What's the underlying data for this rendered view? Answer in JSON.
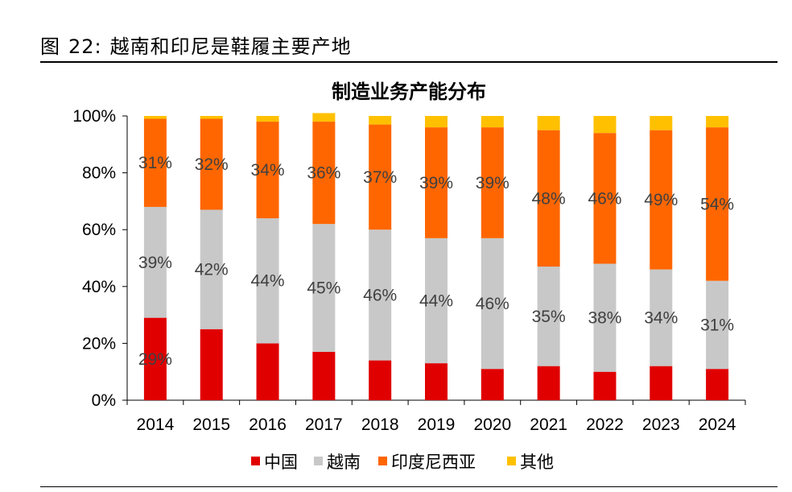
{
  "figure": {
    "label": "图",
    "number": "22:",
    "caption": "越南和印尼是鞋履主要产地"
  },
  "chart_data": {
    "type": "bar",
    "stacked": true,
    "title": "制造业务产能分布",
    "categories": [
      "2014",
      "2015",
      "2016",
      "2017",
      "2018",
      "2019",
      "2020",
      "2021",
      "2022",
      "2023",
      "2024"
    ],
    "y_tick_labels": [
      "0%",
      "20%",
      "40%",
      "60%",
      "80%",
      "100%"
    ],
    "ylim": [
      0,
      100
    ],
    "legend_position": "bottom",
    "grid": false,
    "series": [
      {
        "name": "中国",
        "color": "#e00000",
        "values": [
          29,
          25,
          20,
          17,
          14,
          13,
          11,
          12,
          10,
          12,
          11
        ],
        "labels": [
          "29%",
          "",
          "",
          "",
          "",
          "",
          "",
          "",
          "",
          "",
          ""
        ]
      },
      {
        "name": "越南",
        "color": "#c8c8c8",
        "values": [
          39,
          42,
          44,
          45,
          46,
          44,
          46,
          35,
          38,
          34,
          31
        ],
        "labels": [
          "39%",
          "42%",
          "44%",
          "45%",
          "46%",
          "44%",
          "46%",
          "35%",
          "38%",
          "34%",
          "31%"
        ]
      },
      {
        "name": "印度尼西亚",
        "color": "#ff6600",
        "values": [
          31,
          32,
          34,
          36,
          37,
          39,
          39,
          48,
          46,
          49,
          54
        ],
        "labels": [
          "31%",
          "32%",
          "34%",
          "36%",
          "37%",
          "39%",
          "39%",
          "48%",
          "46%",
          "49%",
          "54%"
        ]
      },
      {
        "name": "其他",
        "color": "#ffc000",
        "values": [
          1,
          1,
          2,
          3,
          3,
          4,
          4,
          5,
          6,
          5,
          4
        ],
        "labels": [
          "",
          "",
          "",
          "",
          "",
          "",
          "",
          "",
          "",
          "",
          ""
        ]
      }
    ]
  }
}
